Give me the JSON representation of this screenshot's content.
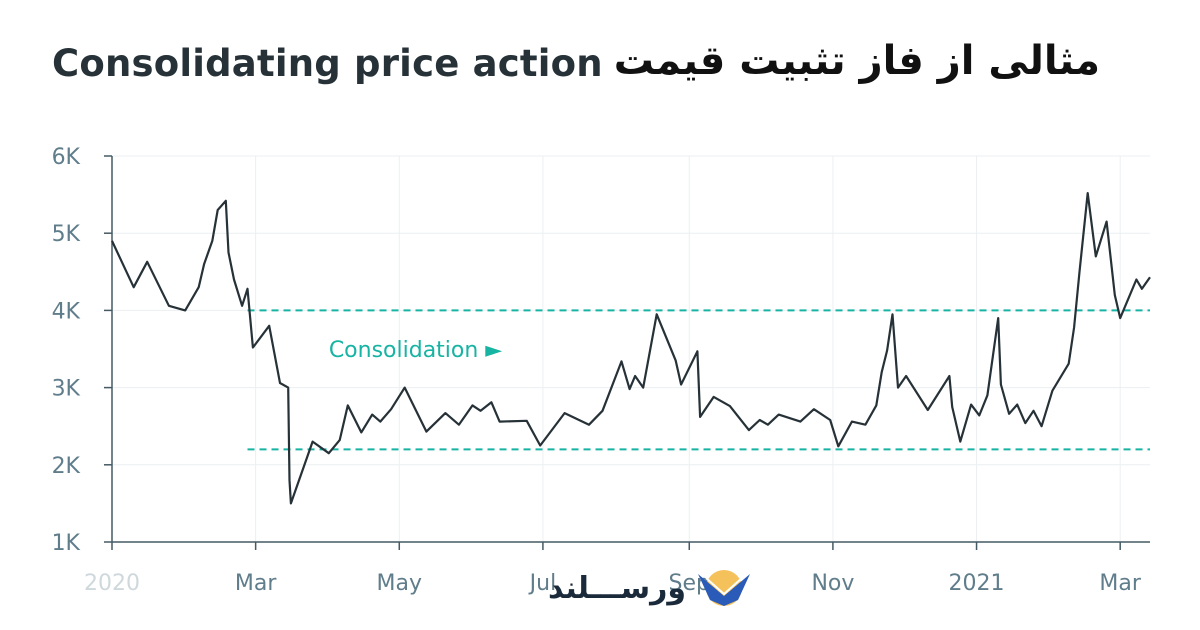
{
  "title": "Consolidating price action",
  "subtitle_fa": "مثالی از فاز تثبیت قیمت",
  "brand": {
    "name": "ورســـلند"
  },
  "chart_data": {
    "type": "line",
    "xlim": [
      0,
      383
    ],
    "ylim": [
      1000,
      6000
    ],
    "yticks": [
      {
        "value": 1000,
        "label": "1K"
      },
      {
        "value": 2000,
        "label": "2K"
      },
      {
        "value": 3000,
        "label": "3K"
      },
      {
        "value": 4000,
        "label": "4K"
      },
      {
        "value": 5000,
        "label": "5K"
      },
      {
        "value": 6000,
        "label": "6K"
      }
    ],
    "xticks": [
      {
        "value": 0,
        "label": "2020"
      },
      {
        "value": 53,
        "label": "Mar"
      },
      {
        "value": 106,
        "label": "May"
      },
      {
        "value": 159,
        "label": "Jul"
      },
      {
        "value": 213,
        "label": "Sep"
      },
      {
        "value": 266,
        "label": "Nov"
      },
      {
        "value": 319,
        "label": "2021"
      },
      {
        "value": 372,
        "label": "Mar"
      }
    ],
    "grid": true,
    "consolidation": {
      "label": "Consolidation ►",
      "upper": 4000,
      "lower": 2200,
      "start_x": 50,
      "label_x": 80,
      "label_y": 3500
    },
    "series": [
      {
        "color": "#263238",
        "points": [
          [
            0,
            4900
          ],
          [
            8,
            4300
          ],
          [
            13,
            4630
          ],
          [
            21,
            4060
          ],
          [
            27,
            4000
          ],
          [
            32,
            4300
          ],
          [
            34,
            4600
          ],
          [
            37,
            4900
          ],
          [
            39,
            5300
          ],
          [
            42,
            5420
          ],
          [
            43,
            4750
          ],
          [
            45,
            4400
          ],
          [
            48,
            4060
          ],
          [
            50,
            4280
          ],
          [
            52,
            3520
          ],
          [
            58,
            3800
          ],
          [
            62,
            3060
          ],
          [
            65,
            3000
          ],
          [
            65.5,
            1800
          ],
          [
            66,
            1500
          ],
          [
            74,
            2300
          ],
          [
            80,
            2150
          ],
          [
            84,
            2320
          ],
          [
            87,
            2770
          ],
          [
            92,
            2420
          ],
          [
            96,
            2650
          ],
          [
            99,
            2560
          ],
          [
            103,
            2720
          ],
          [
            108,
            3000
          ],
          [
            116,
            2430
          ],
          [
            123,
            2670
          ],
          [
            128,
            2520
          ],
          [
            133,
            2770
          ],
          [
            136,
            2700
          ],
          [
            140,
            2810
          ],
          [
            143,
            2560
          ],
          [
            153,
            2570
          ],
          [
            158,
            2250
          ],
          [
            167,
            2670
          ],
          [
            176,
            2520
          ],
          [
            181,
            2700
          ],
          [
            188,
            3340
          ],
          [
            191,
            2980
          ],
          [
            193,
            3150
          ],
          [
            196,
            3000
          ],
          [
            201,
            3950
          ],
          [
            208,
            3350
          ],
          [
            210,
            3040
          ],
          [
            216,
            3470
          ],
          [
            217,
            2620
          ],
          [
            222,
            2880
          ],
          [
            228,
            2760
          ],
          [
            235,
            2450
          ],
          [
            239,
            2580
          ],
          [
            242,
            2520
          ],
          [
            246,
            2650
          ],
          [
            254,
            2560
          ],
          [
            259,
            2720
          ],
          [
            265,
            2580
          ],
          [
            268,
            2240
          ],
          [
            273,
            2560
          ],
          [
            278,
            2520
          ],
          [
            282,
            2770
          ],
          [
            284,
            3200
          ],
          [
            286,
            3480
          ],
          [
            288,
            3950
          ],
          [
            290,
            3000
          ],
          [
            293,
            3150
          ],
          [
            301,
            2710
          ],
          [
            309,
            3150
          ],
          [
            310,
            2750
          ],
          [
            313,
            2300
          ],
          [
            317,
            2780
          ],
          [
            320,
            2640
          ],
          [
            323,
            2900
          ],
          [
            327,
            3900
          ],
          [
            328,
            3040
          ],
          [
            331,
            2660
          ],
          [
            334,
            2780
          ],
          [
            337,
            2540
          ],
          [
            340,
            2700
          ],
          [
            343,
            2500
          ],
          [
            347,
            2960
          ],
          [
            353,
            3310
          ],
          [
            355,
            3780
          ],
          [
            357,
            4500
          ],
          [
            360,
            5520
          ],
          [
            363,
            4700
          ],
          [
            367,
            5150
          ],
          [
            370,
            4200
          ],
          [
            372,
            3900
          ],
          [
            378,
            4400
          ],
          [
            380,
            4280
          ],
          [
            383,
            4430
          ]
        ]
      }
    ]
  }
}
